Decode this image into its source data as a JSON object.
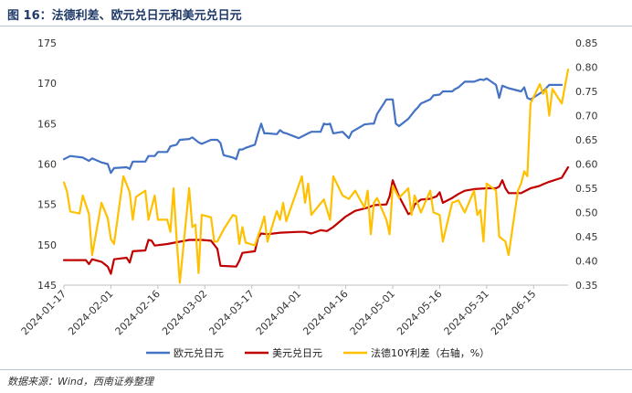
{
  "figure": {
    "title": "图 16：法德利差、欧元兑日元和美元兑日元",
    "source": "数据来源：Wind，西南证券整理"
  },
  "colors": {
    "eurjpy": "#4472c4",
    "usdjpy": "#c00000",
    "spread": "#ffc000",
    "title": "#1f3a68"
  },
  "chart_data": {
    "type": "line",
    "x_ticks": [
      "2024-01-17",
      "2024-02-01",
      "2024-02-16",
      "2024-03-02",
      "2024-03-17",
      "2024-04-01",
      "2024-04-16",
      "2024-05-01",
      "2024-05-16",
      "2024-05-31",
      "2024-06-15"
    ],
    "x_range": [
      "2024-01-17",
      "2024-06-26"
    ],
    "y_left": {
      "min": 145,
      "max": 175,
      "ticks": [
        145,
        150,
        155,
        160,
        165,
        170,
        175
      ]
    },
    "y_right": {
      "min": 0.35,
      "max": 0.85,
      "ticks": [
        "0.35",
        "0.40",
        "0.45",
        "0.50",
        "0.55",
        "0.60",
        "0.65",
        "0.70",
        "0.75",
        "0.80",
        "0.85"
      ]
    },
    "legend_position": "bottom",
    "series": [
      {
        "name": "欧元兑日元",
        "axis": "left",
        "color": "#4472c4",
        "points": [
          [
            "2024-01-17",
            160.6
          ],
          [
            "2024-01-19",
            161.0
          ],
          [
            "2024-01-23",
            160.8
          ],
          [
            "2024-01-25",
            160.4
          ],
          [
            "2024-01-26",
            160.7
          ],
          [
            "2024-01-29",
            160.2
          ],
          [
            "2024-01-31",
            160.0
          ],
          [
            "2024-02-01",
            158.9
          ],
          [
            "2024-02-02",
            159.5
          ],
          [
            "2024-02-06",
            159.6
          ],
          [
            "2024-02-07",
            159.4
          ],
          [
            "2024-02-08",
            160.3
          ],
          [
            "2024-02-12",
            160.3
          ],
          [
            "2024-02-13",
            161.0
          ],
          [
            "2024-02-15",
            161.0
          ],
          [
            "2024-02-16",
            161.5
          ],
          [
            "2024-02-19",
            161.5
          ],
          [
            "2024-02-20",
            162.2
          ],
          [
            "2024-02-22",
            162.4
          ],
          [
            "2024-02-23",
            163.0
          ],
          [
            "2024-02-26",
            163.1
          ],
          [
            "2024-02-27",
            163.3
          ],
          [
            "2024-02-29",
            162.7
          ],
          [
            "2024-03-01",
            162.5
          ],
          [
            "2024-03-04",
            163.0
          ],
          [
            "2024-03-06",
            163.0
          ],
          [
            "2024-03-07",
            162.6
          ],
          [
            "2024-03-08",
            161.1
          ],
          [
            "2024-03-11",
            160.8
          ],
          [
            "2024-03-12",
            160.6
          ],
          [
            "2024-03-13",
            161.8
          ],
          [
            "2024-03-14",
            161.8
          ],
          [
            "2024-03-15",
            162.0
          ],
          [
            "2024-03-18",
            162.4
          ],
          [
            "2024-03-19",
            163.8
          ],
          [
            "2024-03-20",
            165.0
          ],
          [
            "2024-03-21",
            163.8
          ],
          [
            "2024-03-22",
            163.8
          ],
          [
            "2024-03-25",
            163.7
          ],
          [
            "2024-03-26",
            164.2
          ],
          [
            "2024-03-27",
            163.9
          ],
          [
            "2024-03-28",
            163.8
          ],
          [
            "2024-04-01",
            163.2
          ],
          [
            "2024-04-04",
            163.8
          ],
          [
            "2024-04-05",
            164.0
          ],
          [
            "2024-04-08",
            164.0
          ],
          [
            "2024-04-09",
            165.0
          ],
          [
            "2024-04-10",
            164.9
          ],
          [
            "2024-04-11",
            165.0
          ],
          [
            "2024-04-12",
            163.8
          ],
          [
            "2024-04-15",
            164.0
          ],
          [
            "2024-04-17",
            163.2
          ],
          [
            "2024-04-18",
            164.0
          ],
          [
            "2024-04-22",
            164.9
          ],
          [
            "2024-04-24",
            165.0
          ],
          [
            "2024-04-25",
            165.0
          ],
          [
            "2024-04-26",
            166.2
          ],
          [
            "2024-04-29",
            168.0
          ],
          [
            "2024-05-01",
            168.0
          ],
          [
            "2024-05-02",
            165.0
          ],
          [
            "2024-05-03",
            164.7
          ],
          [
            "2024-05-06",
            165.6
          ],
          [
            "2024-05-08",
            166.6
          ],
          [
            "2024-05-09",
            167.0
          ],
          [
            "2024-05-10",
            167.5
          ],
          [
            "2024-05-13",
            168.0
          ],
          [
            "2024-05-14",
            168.5
          ],
          [
            "2024-05-16",
            168.6
          ],
          [
            "2024-05-17",
            169.0
          ],
          [
            "2024-05-20",
            169.0
          ],
          [
            "2024-05-21",
            169.3
          ],
          [
            "2024-05-22",
            169.5
          ],
          [
            "2024-05-24",
            170.2
          ],
          [
            "2024-05-27",
            170.2
          ],
          [
            "2024-05-29",
            170.5
          ],
          [
            "2024-05-30",
            170.4
          ],
          [
            "2024-05-31",
            170.6
          ],
          [
            "2024-06-03",
            169.8
          ],
          [
            "2024-06-04",
            168.2
          ],
          [
            "2024-06-05",
            169.7
          ],
          [
            "2024-06-07",
            169.4
          ],
          [
            "2024-06-11",
            169.0
          ],
          [
            "2024-06-12",
            169.5
          ],
          [
            "2024-06-13",
            168.2
          ],
          [
            "2024-06-14",
            168.0
          ],
          [
            "2024-06-18",
            169.0
          ],
          [
            "2024-06-20",
            169.8
          ],
          [
            "2024-06-24",
            169.8
          ]
        ]
      },
      {
        "name": "美元兑日元",
        "axis": "left",
        "color": "#c00000",
        "points": [
          [
            "2024-01-17",
            148.1
          ],
          [
            "2024-01-24",
            148.1
          ],
          [
            "2024-01-25",
            147.6
          ],
          [
            "2024-01-26",
            148.2
          ],
          [
            "2024-01-29",
            147.9
          ],
          [
            "2024-01-31",
            147.3
          ],
          [
            "2024-02-01",
            146.4
          ],
          [
            "2024-02-02",
            148.2
          ],
          [
            "2024-02-06",
            148.4
          ],
          [
            "2024-02-07",
            147.8
          ],
          [
            "2024-02-08",
            149.2
          ],
          [
            "2024-02-12",
            149.3
          ],
          [
            "2024-02-13",
            150.6
          ],
          [
            "2024-02-14",
            150.5
          ],
          [
            "2024-02-15",
            149.9
          ],
          [
            "2024-02-19",
            150.1
          ],
          [
            "2024-02-26",
            150.6
          ],
          [
            "2024-03-01",
            150.6
          ],
          [
            "2024-03-04",
            150.5
          ],
          [
            "2024-03-06",
            149.5
          ],
          [
            "2024-03-07",
            147.4
          ],
          [
            "2024-03-12",
            147.3
          ],
          [
            "2024-03-13",
            148.0
          ],
          [
            "2024-03-14",
            149.0
          ],
          [
            "2024-03-18",
            149.2
          ],
          [
            "2024-03-19",
            150.9
          ],
          [
            "2024-03-20",
            151.4
          ],
          [
            "2024-03-22",
            151.3
          ],
          [
            "2024-03-26",
            151.5
          ],
          [
            "2024-04-01",
            151.6
          ],
          [
            "2024-04-03",
            151.6
          ],
          [
            "2024-04-05",
            151.4
          ],
          [
            "2024-04-08",
            151.8
          ],
          [
            "2024-04-10",
            151.7
          ],
          [
            "2024-04-12",
            152.2
          ],
          [
            "2024-04-16",
            153.5
          ],
          [
            "2024-04-19",
            154.2
          ],
          [
            "2024-04-23",
            154.6
          ],
          [
            "2024-04-25",
            154.9
          ],
          [
            "2024-04-29",
            155.0
          ],
          [
            "2024-04-30",
            156.0
          ],
          [
            "2024-05-01",
            158.0
          ],
          [
            "2024-05-02",
            157.0
          ],
          [
            "2024-05-03",
            156.0
          ],
          [
            "2024-05-06",
            153.8
          ],
          [
            "2024-05-07",
            154.0
          ],
          [
            "2024-05-08",
            155.0
          ],
          [
            "2024-05-10",
            155.6
          ],
          [
            "2024-05-13",
            155.7
          ],
          [
            "2024-05-15",
            156.0
          ],
          [
            "2024-05-16",
            156.5
          ],
          [
            "2024-05-17",
            155.2
          ],
          [
            "2024-05-20",
            155.8
          ],
          [
            "2024-05-22",
            156.3
          ],
          [
            "2024-05-24",
            156.7
          ],
          [
            "2024-05-27",
            156.9
          ],
          [
            "2024-05-31",
            157.0
          ],
          [
            "2024-06-03",
            157.0
          ],
          [
            "2024-06-04",
            157.2
          ],
          [
            "2024-06-05",
            158.0
          ],
          [
            "2024-06-06",
            157.0
          ],
          [
            "2024-06-07",
            156.4
          ],
          [
            "2024-06-11",
            156.4
          ],
          [
            "2024-06-12",
            156.6
          ],
          [
            "2024-06-14",
            157.0
          ],
          [
            "2024-06-17",
            157.3
          ],
          [
            "2024-06-18",
            157.5
          ],
          [
            "2024-06-20",
            157.8
          ],
          [
            "2024-06-24",
            158.3
          ],
          [
            "2024-06-26",
            159.6
          ]
        ]
      },
      {
        "name": "法德10Y利差（右轴，%）",
        "axis": "right",
        "color": "#ffc000",
        "points": [
          [
            "2024-01-17",
            0.562
          ],
          [
            "2024-01-18",
            0.543
          ],
          [
            "2024-01-19",
            0.502
          ],
          [
            "2024-01-22",
            0.498
          ],
          [
            "2024-01-23",
            0.535
          ],
          [
            "2024-01-25",
            0.497
          ],
          [
            "2024-01-26",
            0.412
          ],
          [
            "2024-01-29",
            0.52
          ],
          [
            "2024-01-31",
            0.488
          ],
          [
            "2024-02-01",
            0.445
          ],
          [
            "2024-02-02",
            0.435
          ],
          [
            "2024-02-05",
            0.575
          ],
          [
            "2024-02-07",
            0.542
          ],
          [
            "2024-02-08",
            0.485
          ],
          [
            "2024-02-09",
            0.532
          ],
          [
            "2024-02-12",
            0.545
          ],
          [
            "2024-02-13",
            0.485
          ],
          [
            "2024-02-15",
            0.535
          ],
          [
            "2024-02-16",
            0.485
          ],
          [
            "2024-02-19",
            0.485
          ],
          [
            "2024-02-20",
            0.46
          ],
          [
            "2024-02-21",
            0.55
          ],
          [
            "2024-02-22",
            0.445
          ],
          [
            "2024-02-23",
            0.355
          ],
          [
            "2024-02-26",
            0.55
          ],
          [
            "2024-02-27",
            0.47
          ],
          [
            "2024-02-28",
            0.475
          ],
          [
            "2024-02-29",
            0.375
          ],
          [
            "2024-03-01",
            0.495
          ],
          [
            "2024-03-04",
            0.49
          ],
          [
            "2024-03-05",
            0.44
          ],
          [
            "2024-03-06",
            0.44
          ],
          [
            "2024-03-08",
            0.465
          ],
          [
            "2024-03-11",
            0.495
          ],
          [
            "2024-03-12",
            0.492
          ],
          [
            "2024-03-13",
            0.435
          ],
          [
            "2024-03-14",
            0.47
          ],
          [
            "2024-03-15",
            0.438
          ],
          [
            "2024-03-18",
            0.432
          ],
          [
            "2024-03-20",
            0.47
          ],
          [
            "2024-03-21",
            0.492
          ],
          [
            "2024-03-22",
            0.44
          ],
          [
            "2024-03-25",
            0.503
          ],
          [
            "2024-03-26",
            0.485
          ],
          [
            "2024-03-27",
            0.52
          ],
          [
            "2024-03-28",
            0.482
          ],
          [
            "2024-04-02",
            0.575
          ],
          [
            "2024-04-03",
            0.52
          ],
          [
            "2024-04-04",
            0.56
          ],
          [
            "2024-04-05",
            0.495
          ],
          [
            "2024-04-09",
            0.527
          ],
          [
            "2024-04-11",
            0.485
          ],
          [
            "2024-04-12",
            0.575
          ],
          [
            "2024-04-15",
            0.535
          ],
          [
            "2024-04-17",
            0.528
          ],
          [
            "2024-04-19",
            0.545
          ],
          [
            "2024-04-22",
            0.51
          ],
          [
            "2024-04-23",
            0.545
          ],
          [
            "2024-04-24",
            0.455
          ],
          [
            "2024-04-25",
            0.52
          ],
          [
            "2024-04-26",
            0.53
          ],
          [
            "2024-04-29",
            0.485
          ],
          [
            "2024-04-30",
            0.455
          ],
          [
            "2024-05-01",
            0.555
          ],
          [
            "2024-05-03",
            0.53
          ],
          [
            "2024-05-06",
            0.55
          ],
          [
            "2024-05-07",
            0.495
          ],
          [
            "2024-05-08",
            0.535
          ],
          [
            "2024-05-10",
            0.5
          ],
          [
            "2024-05-13",
            0.545
          ],
          [
            "2024-05-14",
            0.5
          ],
          [
            "2024-05-16",
            0.495
          ],
          [
            "2024-05-17",
            0.44
          ],
          [
            "2024-05-20",
            0.52
          ],
          [
            "2024-05-22",
            0.525
          ],
          [
            "2024-05-24",
            0.5
          ],
          [
            "2024-05-27",
            0.545
          ],
          [
            "2024-05-28",
            0.495
          ],
          [
            "2024-05-29",
            0.505
          ],
          [
            "2024-05-30",
            0.44
          ],
          [
            "2024-05-31",
            0.56
          ],
          [
            "2024-06-03",
            0.545
          ],
          [
            "2024-06-04",
            0.45
          ],
          [
            "2024-06-06",
            0.44
          ],
          [
            "2024-06-07",
            0.412
          ],
          [
            "2024-06-10",
            0.545
          ],
          [
            "2024-06-11",
            0.56
          ],
          [
            "2024-06-12",
            0.585
          ],
          [
            "2024-06-13",
            0.575
          ],
          [
            "2024-06-14",
            0.725
          ],
          [
            "2024-06-17",
            0.765
          ],
          [
            "2024-06-18",
            0.745
          ],
          [
            "2024-06-19",
            0.755
          ],
          [
            "2024-06-20",
            0.7
          ],
          [
            "2024-06-21",
            0.755
          ],
          [
            "2024-06-24",
            0.725
          ],
          [
            "2024-06-26",
            0.795
          ]
        ]
      }
    ]
  }
}
